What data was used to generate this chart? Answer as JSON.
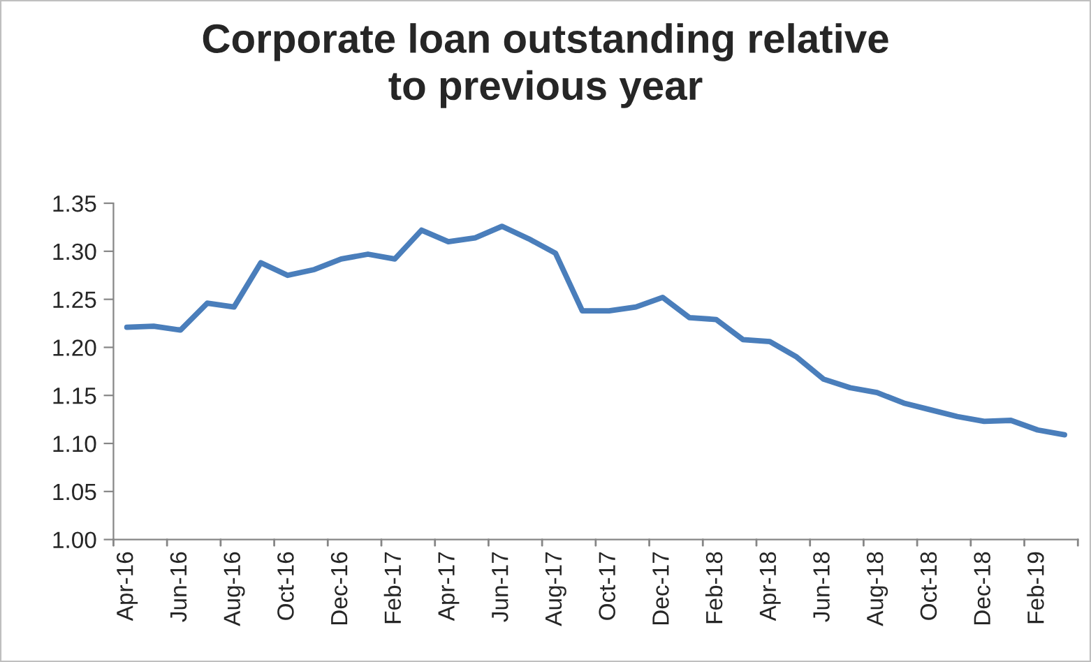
{
  "chart_data": {
    "type": "line",
    "title": "Corporate loan outstanding relative\nto previous year",
    "categories": [
      "Apr-16",
      null,
      "Jun-16",
      null,
      "Aug-16",
      null,
      "Oct-16",
      null,
      "Dec-16",
      null,
      "Feb-17",
      null,
      "Apr-17",
      null,
      "Jun-17",
      null,
      "Aug-17",
      null,
      "Oct-17",
      null,
      "Dec-17",
      null,
      "Feb-18",
      null,
      "Apr-18",
      null,
      "Jun-18",
      null,
      "Aug-18",
      null,
      "Oct-18",
      null,
      "Dec-18",
      null,
      "Feb-19",
      null
    ],
    "series": [
      {
        "color": "#4a7ebb",
        "values": [
          1.221,
          1.222,
          1.218,
          1.246,
          1.242,
          1.288,
          1.275,
          1.281,
          1.292,
          1.297,
          1.292,
          1.322,
          1.31,
          1.314,
          1.326,
          1.313,
          1.298,
          1.238,
          1.238,
          1.242,
          1.252,
          1.231,
          1.229,
          1.208,
          1.206,
          1.19,
          1.167,
          1.158,
          1.153,
          1.142,
          1.135,
          1.128,
          1.123,
          1.124,
          1.114,
          1.109
        ]
      }
    ],
    "ylim": [
      1.0,
      1.35
    ],
    "yticks": [
      {
        "value": 1.0,
        "label": "1.00"
      },
      {
        "value": 1.05,
        "label": "1.05"
      },
      {
        "value": 1.1,
        "label": "1.10"
      },
      {
        "value": 1.15,
        "label": "1.15"
      },
      {
        "value": 1.2,
        "label": "1.20"
      },
      {
        "value": 1.25,
        "label": "1.25"
      },
      {
        "value": 1.3,
        "label": "1.30"
      },
      {
        "value": 1.35,
        "label": "1.35"
      }
    ],
    "grid": false,
    "legend": false,
    "marker": "none",
    "line_style": "solid"
  }
}
